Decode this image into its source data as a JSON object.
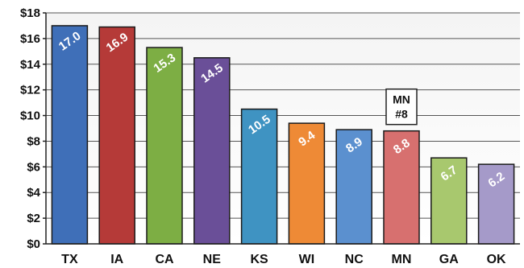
{
  "chart_data": {
    "type": "bar",
    "categories": [
      "TX",
      "IA",
      "CA",
      "NE",
      "KS",
      "WI",
      "NC",
      "MN",
      "GA",
      "OK"
    ],
    "values": [
      17.0,
      16.9,
      15.3,
      14.5,
      10.5,
      9.4,
      8.9,
      8.8,
      6.7,
      6.2
    ],
    "value_labels": [
      "17.0",
      "16.9",
      "15.3",
      "14.5",
      "10.5",
      "9.4",
      "8.9",
      "8.8",
      "6.7",
      "6.2"
    ],
    "bar_colors": [
      "#3f6fb8",
      "#b53a38",
      "#7dae44",
      "#6a4f98",
      "#3f93c2",
      "#ee8a36",
      "#5b90cf",
      "#d7706f",
      "#a8c86e",
      "#a59ac9"
    ],
    "ylim": [
      0,
      18
    ],
    "ytick_values": [
      0,
      2,
      4,
      6,
      8,
      10,
      12,
      14,
      16,
      18
    ],
    "ytick_labels": [
      "$0",
      "$2",
      "$4",
      "$6",
      "$8",
      "$10",
      "$12",
      "$14",
      "$16",
      "$18"
    ],
    "grid": true,
    "annotation": {
      "category": "MN",
      "line1": "MN",
      "line2": "#8"
    }
  }
}
